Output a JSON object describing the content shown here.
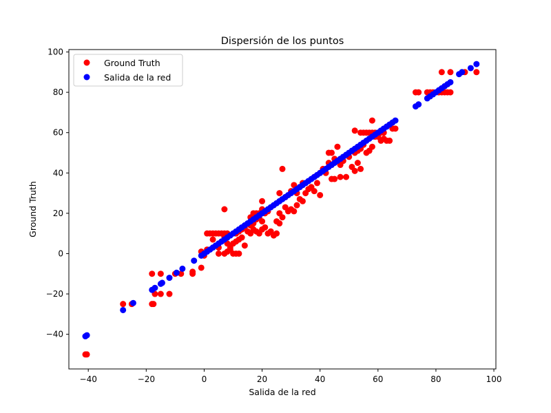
{
  "chart_data": {
    "type": "scatter",
    "title": "Dispersión de los puntos",
    "xlabel": "Salida de la red",
    "ylabel": "Ground Truth",
    "xlim": [
      -46.7,
      100.7
    ],
    "ylim": [
      -57.2,
      101.2
    ],
    "xticks": [
      -40,
      -20,
      0,
      20,
      40,
      60,
      80,
      100
    ],
    "yticks": [
      -40,
      -20,
      0,
      20,
      40,
      60,
      80,
      100
    ],
    "tick_labels": {
      "x": [
        "−40",
        "−20",
        "0",
        "20",
        "40",
        "60",
        "80",
        "100"
      ],
      "y": [
        "−40",
        "−20",
        "0",
        "20",
        "40",
        "60",
        "80",
        "100"
      ]
    },
    "grid": false,
    "legend_position": "upper-left",
    "series": [
      {
        "name": "Ground Truth",
        "color": "#ff0000",
        "points": [
          [
            -41,
            -50
          ],
          [
            -40.5,
            -50
          ],
          [
            -28,
            -25
          ],
          [
            -25,
            -25
          ],
          [
            -18,
            -25
          ],
          [
            -17.5,
            -25
          ],
          [
            -18,
            -10
          ],
          [
            -15,
            -10
          ],
          [
            -17,
            -20
          ],
          [
            -15,
            -20
          ],
          [
            -12,
            -20
          ],
          [
            -10,
            -10
          ],
          [
            -8,
            -10
          ],
          [
            -4,
            -9
          ],
          [
            -4,
            -10
          ],
          [
            -1,
            1
          ],
          [
            -1,
            -7
          ],
          [
            0,
            -1
          ],
          [
            1,
            2
          ],
          [
            1,
            10
          ],
          [
            2,
            10
          ],
          [
            3,
            10
          ],
          [
            4,
            10
          ],
          [
            5,
            10
          ],
          [
            6,
            10
          ],
          [
            7,
            10
          ],
          [
            8,
            10
          ],
          [
            3,
            7
          ],
          [
            5,
            3
          ],
          [
            6,
            6
          ],
          [
            7,
            8
          ],
          [
            8,
            5
          ],
          [
            9,
            3
          ],
          [
            5,
            0
          ],
          [
            7,
            0
          ],
          [
            10,
            0
          ],
          [
            11,
            0
          ],
          [
            12,
            0
          ],
          [
            8,
            1
          ],
          [
            9,
            2
          ],
          [
            10,
            5
          ],
          [
            11,
            6
          ],
          [
            12,
            7
          ],
          [
            13,
            8
          ],
          [
            14,
            4
          ],
          [
            11,
            10
          ],
          [
            12,
            11
          ],
          [
            13,
            12
          ],
          [
            14,
            13
          ],
          [
            15,
            11
          ],
          [
            16,
            14
          ],
          [
            17,
            15
          ],
          [
            18,
            17
          ],
          [
            19,
            18
          ],
          [
            20,
            16
          ],
          [
            16,
            10
          ],
          [
            17,
            12
          ],
          [
            18,
            11
          ],
          [
            19,
            10
          ],
          [
            20,
            12
          ],
          [
            21,
            13
          ],
          [
            22,
            10
          ],
          [
            23,
            11
          ],
          [
            24,
            9
          ],
          [
            25,
            10
          ],
          [
            16,
            18
          ],
          [
            17,
            20
          ],
          [
            18,
            20
          ],
          [
            19,
            20
          ],
          [
            20,
            22
          ],
          [
            21,
            20
          ],
          [
            22,
            21
          ],
          [
            7,
            22
          ],
          [
            20,
            26
          ],
          [
            25,
            16
          ],
          [
            26,
            20
          ],
          [
            27,
            18
          ],
          [
            26,
            15
          ],
          [
            28,
            23
          ],
          [
            29,
            21
          ],
          [
            30,
            22
          ],
          [
            31,
            21
          ],
          [
            32,
            24
          ],
          [
            33,
            27
          ],
          [
            34,
            26
          ],
          [
            26,
            30
          ],
          [
            28,
            28
          ],
          [
            30,
            31
          ],
          [
            31,
            34
          ],
          [
            32,
            30
          ],
          [
            33,
            33
          ],
          [
            34,
            35
          ],
          [
            27,
            42
          ],
          [
            35,
            30
          ],
          [
            36,
            32
          ],
          [
            37,
            33
          ],
          [
            38,
            31
          ],
          [
            39,
            35
          ],
          [
            40,
            29
          ],
          [
            38,
            38
          ],
          [
            40,
            40
          ],
          [
            41,
            42
          ],
          [
            42,
            40
          ],
          [
            43,
            45
          ],
          [
            44,
            44
          ],
          [
            45,
            47
          ],
          [
            43,
            50
          ],
          [
            44,
            50
          ],
          [
            46,
            53
          ],
          [
            44,
            37
          ],
          [
            45,
            37
          ],
          [
            47,
            38
          ],
          [
            49,
            38
          ],
          [
            47,
            44
          ],
          [
            48,
            46
          ],
          [
            50,
            48
          ],
          [
            52,
            41
          ],
          [
            51,
            43
          ],
          [
            53,
            45
          ],
          [
            54,
            42
          ],
          [
            52,
            50
          ],
          [
            53,
            51
          ],
          [
            54,
            52
          ],
          [
            55,
            54
          ],
          [
            56,
            50
          ],
          [
            57,
            51
          ],
          [
            58,
            53
          ],
          [
            52,
            61
          ],
          [
            54,
            60
          ],
          [
            55,
            60
          ],
          [
            56,
            60
          ],
          [
            57,
            60
          ],
          [
            58,
            60
          ],
          [
            59,
            60
          ],
          [
            60,
            60
          ],
          [
            61,
            60
          ],
          [
            62,
            60
          ],
          [
            58,
            66
          ],
          [
            59,
            58
          ],
          [
            60,
            58
          ],
          [
            61,
            56
          ],
          [
            62,
            57
          ],
          [
            63,
            56
          ],
          [
            64,
            56
          ],
          [
            65,
            62
          ],
          [
            66,
            62
          ],
          [
            73,
            80
          ],
          [
            74,
            80
          ],
          [
            77,
            80
          ],
          [
            78,
            80
          ],
          [
            79,
            80
          ],
          [
            80,
            80
          ],
          [
            81,
            80
          ],
          [
            82,
            80
          ],
          [
            83,
            80
          ],
          [
            84,
            80
          ],
          [
            85,
            80
          ],
          [
            82,
            90
          ],
          [
            85,
            90
          ],
          [
            90,
            90
          ],
          [
            94,
            90
          ]
        ]
      },
      {
        "name": "Salida de la red",
        "color": "#0000ff",
        "points": [
          [
            -41,
            -41
          ],
          [
            -40.5,
            -40.5
          ],
          [
            -28,
            -28
          ],
          [
            -24.5,
            -24.5
          ],
          [
            -18,
            -18
          ],
          [
            -17,
            -17
          ],
          [
            -15,
            -15
          ],
          [
            -14.5,
            -14.5
          ],
          [
            -12,
            -12
          ],
          [
            -9.5,
            -9.5
          ],
          [
            -7.5,
            -7.5
          ],
          [
            -3.5,
            -3.5
          ],
          [
            -1,
            -1
          ],
          [
            0,
            0
          ],
          [
            1,
            1
          ],
          [
            2,
            2
          ],
          [
            3,
            3
          ],
          [
            4,
            4
          ],
          [
            5,
            5
          ],
          [
            6,
            6
          ],
          [
            7,
            7
          ],
          [
            8,
            8
          ],
          [
            9,
            9
          ],
          [
            10,
            10
          ],
          [
            11,
            11
          ],
          [
            12,
            12
          ],
          [
            13,
            13
          ],
          [
            14,
            14
          ],
          [
            15,
            15
          ],
          [
            16,
            16
          ],
          [
            17,
            17
          ],
          [
            18,
            18
          ],
          [
            19,
            19
          ],
          [
            20,
            20
          ],
          [
            21,
            21
          ],
          [
            22,
            22
          ],
          [
            23,
            23
          ],
          [
            24,
            24
          ],
          [
            25,
            25
          ],
          [
            26,
            26
          ],
          [
            27,
            27
          ],
          [
            28,
            28
          ],
          [
            29,
            29
          ],
          [
            30,
            30
          ],
          [
            31,
            31
          ],
          [
            32,
            32
          ],
          [
            33,
            33
          ],
          [
            34,
            34
          ],
          [
            35,
            35
          ],
          [
            36,
            36
          ],
          [
            37,
            37
          ],
          [
            38,
            38
          ],
          [
            39,
            39
          ],
          [
            40,
            40
          ],
          [
            41,
            41
          ],
          [
            42,
            42
          ],
          [
            43,
            43
          ],
          [
            44,
            44
          ],
          [
            45,
            45
          ],
          [
            46,
            46
          ],
          [
            47,
            47
          ],
          [
            48,
            48
          ],
          [
            49,
            49
          ],
          [
            50,
            50
          ],
          [
            51,
            51
          ],
          [
            52,
            52
          ],
          [
            53,
            53
          ],
          [
            54,
            54
          ],
          [
            55,
            55
          ],
          [
            56,
            56
          ],
          [
            57,
            57
          ],
          [
            58,
            58
          ],
          [
            59,
            59
          ],
          [
            60,
            60
          ],
          [
            61,
            61
          ],
          [
            62,
            62
          ],
          [
            63,
            63
          ],
          [
            64,
            64
          ],
          [
            65,
            65
          ],
          [
            66,
            66
          ],
          [
            73,
            73
          ],
          [
            74,
            74
          ],
          [
            77,
            77
          ],
          [
            78,
            78
          ],
          [
            79,
            79
          ],
          [
            80,
            80
          ],
          [
            81,
            81
          ],
          [
            82,
            82
          ],
          [
            83,
            83
          ],
          [
            84,
            84
          ],
          [
            85,
            85
          ],
          [
            88,
            89
          ],
          [
            89,
            90
          ],
          [
            92,
            92
          ],
          [
            94,
            94
          ]
        ]
      }
    ]
  }
}
